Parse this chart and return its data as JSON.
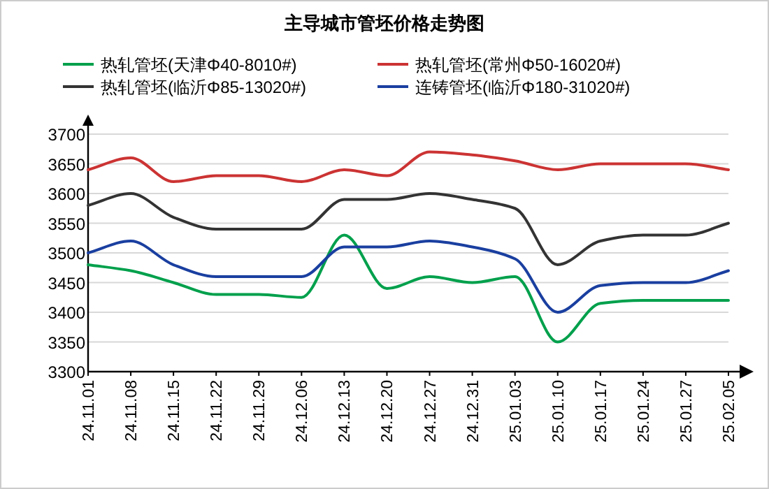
{
  "chart_data": {
    "type": "line",
    "title": "主导城市管坯价格走势图",
    "categories": [
      "24.11.01",
      "24.11.08",
      "24.11.15",
      "24.11.22",
      "24.11.29",
      "24.12.06",
      "24.12.13",
      "24.12.20",
      "24.12.27",
      "24.12.31",
      "25.01.03",
      "25.01.10",
      "25.01.17",
      "25.01.24",
      "25.01.27",
      "25.02.05"
    ],
    "series": [
      {
        "name": "热轧管坯(天津Φ40-8010#)",
        "color": "#00a04c",
        "values": [
          3480,
          3470,
          3450,
          3430,
          3430,
          3425,
          3530,
          3440,
          3460,
          3450,
          3460,
          3350,
          3415,
          3420,
          3420,
          3420
        ]
      },
      {
        "name": "热轧管坯(常州Φ50-16020#)",
        "color": "#cc3333",
        "values": [
          3640,
          3660,
          3620,
          3630,
          3630,
          3620,
          3640,
          3630,
          3670,
          3665,
          3655,
          3640,
          3650,
          3650,
          3650,
          3640
        ]
      },
      {
        "name": "热轧管坯(临沂Φ85-13020#)",
        "color": "#333333",
        "values": [
          3580,
          3600,
          3560,
          3540,
          3540,
          3540,
          3590,
          3590,
          3600,
          3590,
          3575,
          3480,
          3520,
          3530,
          3530,
          3550
        ]
      },
      {
        "name": "连铸管坯(临沂Φ180-31020#)",
        "color": "#1a3fa0",
        "values": [
          3500,
          3520,
          3480,
          3460,
          3460,
          3460,
          3510,
          3510,
          3520,
          3510,
          3490,
          3400,
          3445,
          3450,
          3450,
          3470
        ]
      }
    ],
    "ylim": [
      3300,
      3700
    ],
    "yticks": [
      3300,
      3350,
      3400,
      3450,
      3500,
      3550,
      3600,
      3650,
      3700
    ],
    "grid": "y",
    "legend": "top",
    "marker": "none",
    "line_style": "solid"
  }
}
